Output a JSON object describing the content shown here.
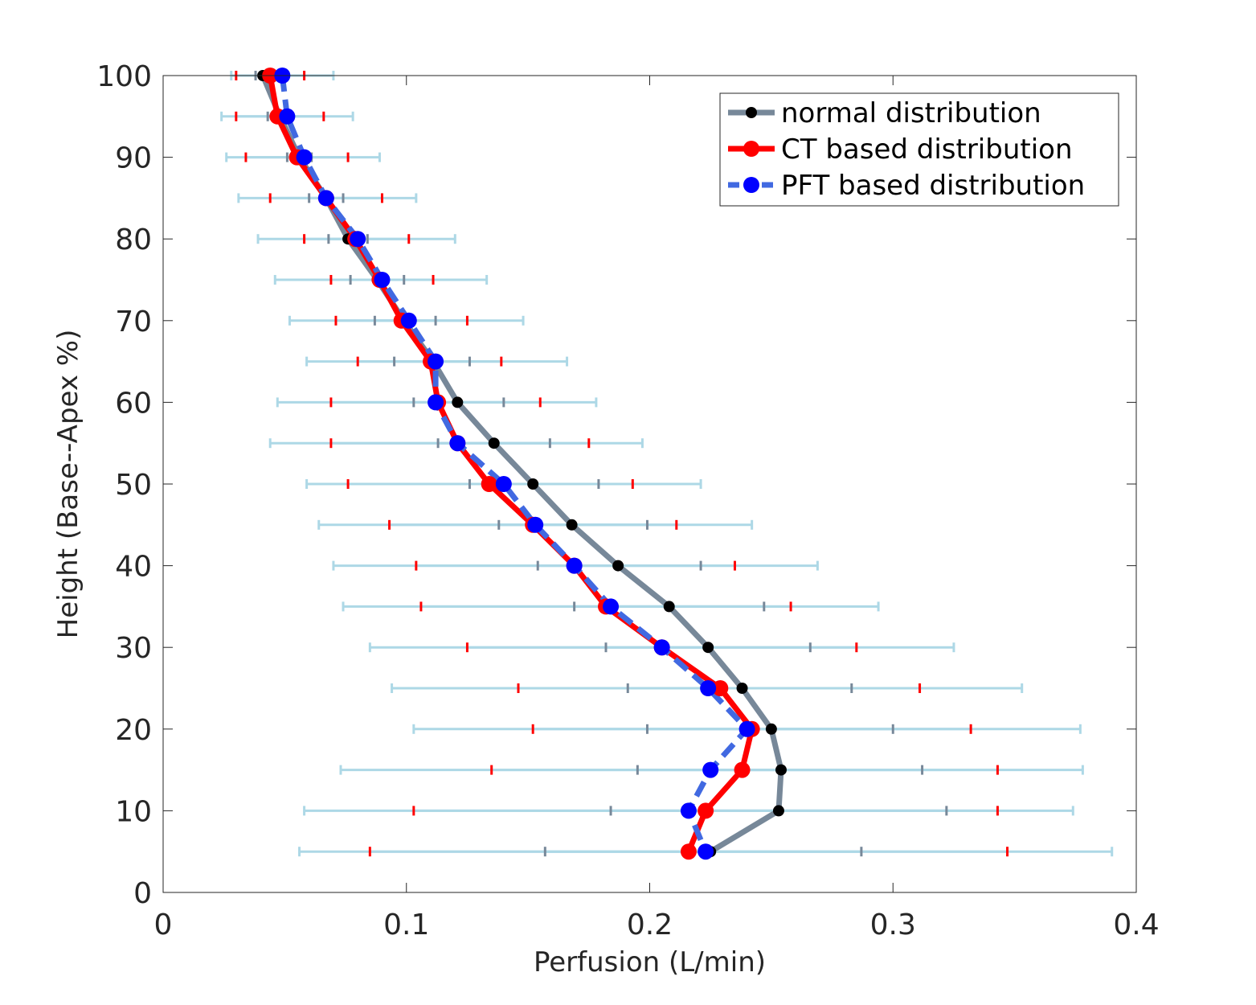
{
  "chart_data": {
    "type": "line",
    "xlabel": "Perfusion (L/min)",
    "ylabel": "Height (Base--Apex %)",
    "xlim": [
      0,
      0.4
    ],
    "ylim": [
      0,
      100
    ],
    "xticks": [
      0,
      0.1,
      0.2,
      0.3,
      0.4
    ],
    "xtick_labels": [
      "0",
      "0.1",
      "0.2",
      "0.3",
      "0.4"
    ],
    "yticks": [
      0,
      10,
      20,
      30,
      40,
      50,
      60,
      70,
      80,
      90,
      100
    ],
    "ytick_labels": [
      "0",
      "10",
      "20",
      "30",
      "40",
      "50",
      "60",
      "70",
      "80",
      "90",
      "100"
    ],
    "grid": false,
    "legend_position": "top-right",
    "y": [
      100,
      95,
      90,
      85,
      80,
      75,
      70,
      65,
      60,
      55,
      50,
      45,
      40,
      35,
      30,
      25,
      20,
      15,
      10,
      5
    ],
    "series": [
      {
        "name": "normal distribution",
        "color": "#778899",
        "marker_color": "#000000",
        "dashed": false,
        "x": [
          0.041,
          0.048,
          0.056,
          0.067,
          0.076,
          0.088,
          0.099,
          0.111,
          0.121,
          0.136,
          0.152,
          0.168,
          0.187,
          0.208,
          0.224,
          0.238,
          0.25,
          0.254,
          0.253,
          0.225
        ],
        "err_low": [
          0.038,
          0.043,
          0.051,
          0.06,
          0.068,
          0.077,
          0.087,
          0.095,
          0.103,
          0.113,
          0.126,
          0.138,
          0.154,
          0.169,
          0.182,
          0.191,
          0.199,
          0.195,
          0.184,
          0.157
        ],
        "err_high": [
          0.044,
          0.053,
          0.061,
          0.074,
          0.084,
          0.099,
          0.112,
          0.126,
          0.14,
          0.159,
          0.179,
          0.199,
          0.221,
          0.247,
          0.266,
          0.283,
          0.3,
          0.312,
          0.322,
          0.287
        ]
      },
      {
        "name": "CT based distribution",
        "color": "#ff0000",
        "marker_color": "#ff0000",
        "dashed": false,
        "x": [
          0.044,
          0.047,
          0.055,
          0.067,
          0.079,
          0.089,
          0.098,
          0.11,
          0.113,
          0.121,
          0.134,
          0.152,
          0.169,
          0.182,
          0.205,
          0.229,
          0.242,
          0.238,
          0.223,
          0.216
        ],
        "err_low": [
          0.03,
          0.03,
          0.034,
          0.044,
          0.058,
          0.069,
          0.071,
          0.08,
          0.069,
          0.069,
          0.076,
          0.093,
          0.104,
          0.106,
          0.125,
          0.146,
          0.152,
          0.135,
          0.103,
          0.085
        ],
        "err_high": [
          0.058,
          0.066,
          0.076,
          0.09,
          0.101,
          0.111,
          0.125,
          0.139,
          0.155,
          0.175,
          0.193,
          0.211,
          0.235,
          0.258,
          0.285,
          0.311,
          0.332,
          0.343,
          0.343,
          0.347
        ]
      },
      {
        "name": "PFT based distribution",
        "color": "#4169e1",
        "marker_color": "#0000ff",
        "dashed": true,
        "x": [
          0.049,
          0.051,
          0.058,
          0.067,
          0.08,
          0.09,
          0.101,
          0.112,
          0.112,
          0.121,
          0.14,
          0.153,
          0.169,
          0.184,
          0.205,
          0.224,
          0.24,
          0.225,
          0.216,
          0.223
        ],
        "err_low": [
          0.028,
          0.024,
          0.026,
          0.031,
          0.039,
          0.046,
          0.052,
          0.059,
          0.047,
          0.044,
          0.059,
          0.064,
          0.07,
          0.074,
          0.085,
          0.094,
          0.103,
          0.073,
          0.058,
          0.056
        ],
        "err_high": [
          0.07,
          0.078,
          0.089,
          0.104,
          0.12,
          0.133,
          0.148,
          0.166,
          0.178,
          0.197,
          0.221,
          0.242,
          0.269,
          0.294,
          0.325,
          0.353,
          0.377,
          0.378,
          0.374,
          0.39
        ]
      }
    ]
  },
  "colors": {
    "errorbar": "#add8e6",
    "axis": "#262626"
  }
}
